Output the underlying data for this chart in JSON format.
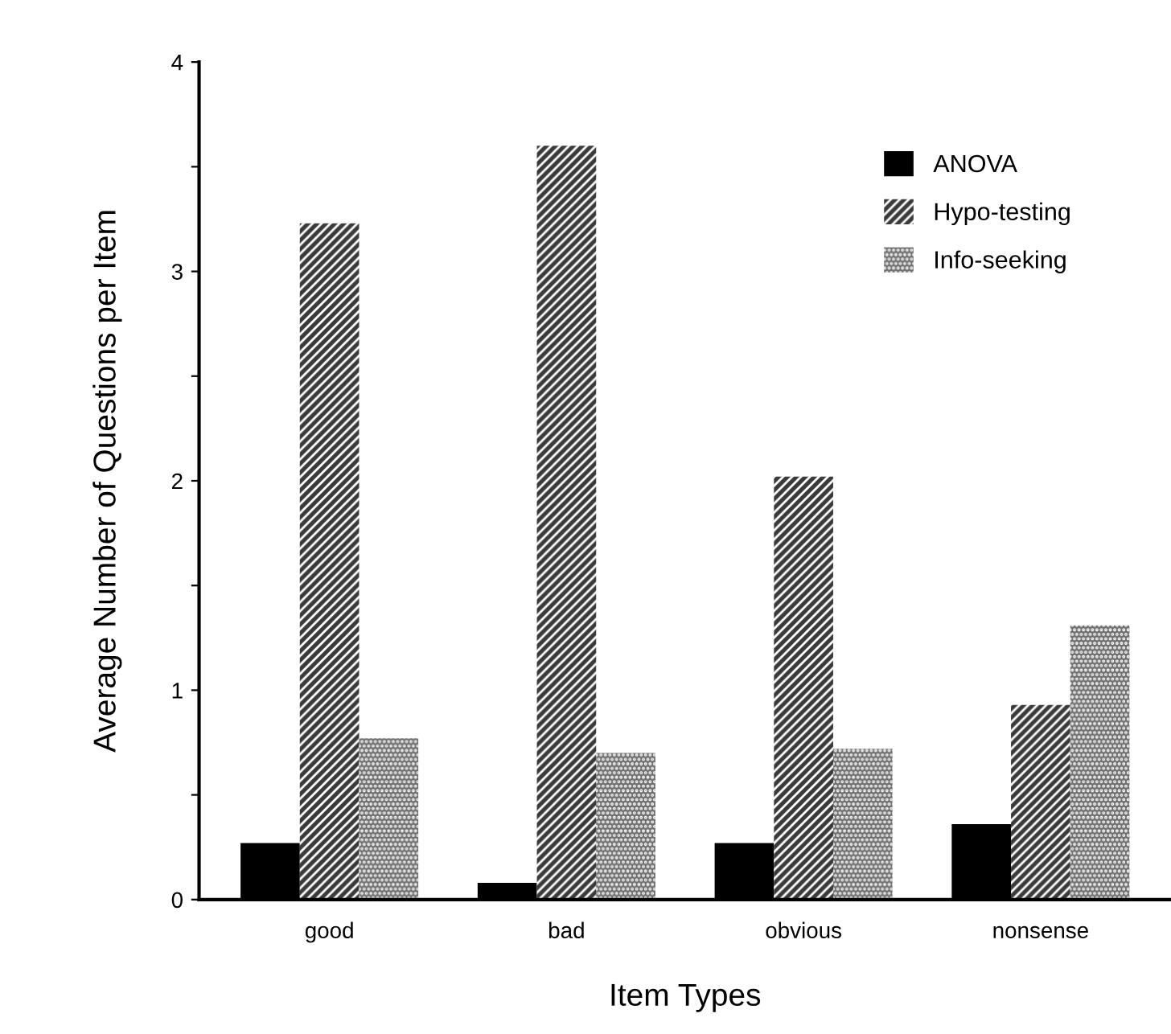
{
  "chart_data": {
    "type": "bar",
    "xlabel": "Item Types",
    "ylabel": "Average Number of Questions per Item",
    "categories": [
      "good",
      "bad",
      "obvious",
      "nonsense"
    ],
    "series": [
      {
        "name": "ANOVA",
        "color": "#000000",
        "values": [
          0.27,
          0.08,
          0.27,
          0.36
        ]
      },
      {
        "name": "Hypo-testing",
        "color": "#3a3a3a",
        "values": [
          3.23,
          3.6,
          2.02,
          0.93
        ]
      },
      {
        "name": "Info-seeking",
        "color": "#6e6e6e",
        "values": [
          0.77,
          0.7,
          0.72,
          1.31
        ]
      }
    ],
    "ylim": [
      0,
      4
    ],
    "yticks": [
      0,
      {
        "value": 0.5,
        "label": null
      },
      1,
      {
        "value": 1.5,
        "label": null
      },
      2,
      {
        "value": 2.5,
        "label": null
      },
      3,
      {
        "value": 3.5,
        "label": null
      },
      4
    ],
    "grid": false,
    "legend": "top right"
  }
}
